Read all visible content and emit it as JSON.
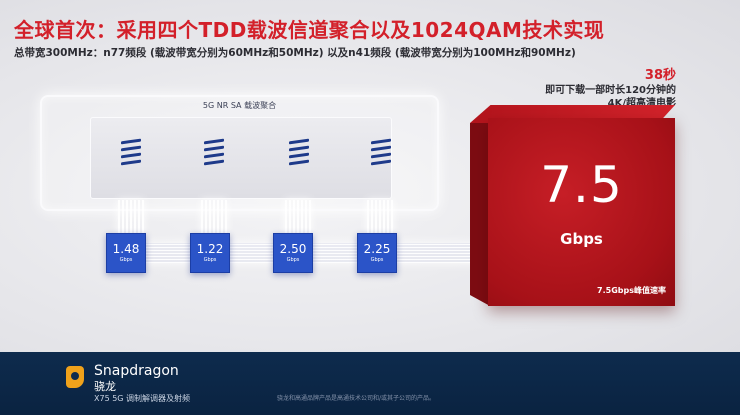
{
  "title": "全球首次：采用四个TDD载波信道聚合以及1024QAM技术实现",
  "subtitle": "总带宽300MHz：n77频段 (载波带宽分别为60MHz和50MHz) 以及n41频段 (载波带宽分别为100MHz和90MHz)",
  "note": {
    "highlight": "38秒",
    "line1": "即可下载一部时长120分钟的",
    "line2": "4K/超高清电影"
  },
  "panel_label": "5G NR SA 载波聚合",
  "carriers": [
    {
      "value": "1.48",
      "unit": "Gbps"
    },
    {
      "value": "1.22",
      "unit": "Gbps"
    },
    {
      "value": "2.50",
      "unit": "Gbps"
    },
    {
      "value": "2.25",
      "unit": "Gbps"
    }
  ],
  "cube": {
    "value": "7.5",
    "unit": "Gbps",
    "caption": "7.5Gbps峰值速率"
  },
  "footer": {
    "brand": "Snapdragon",
    "brand_cn": "骁龙",
    "product": "X75 5G 调制解调器及射频",
    "legal": "骁龙和高通品牌产品是高通技术公司和/或其子公司的产品。"
  },
  "colors": {
    "accent_red": "#d3202a",
    "chip_blue": "#2b54c8",
    "footer_navy": "#0e2b4d"
  }
}
